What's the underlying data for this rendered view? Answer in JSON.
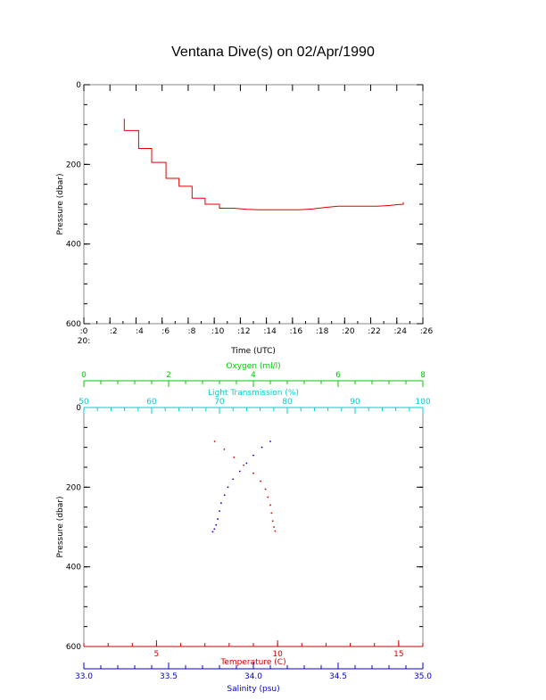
{
  "title": "Ventana Dive(s) on 02/Apr/1990",
  "colors": {
    "axis": "#000000",
    "trace": "#dd0000",
    "temperature": "#cc0000",
    "salinity": "#0000cc",
    "oxygen": "#00cc00",
    "transmission": "#00cccc"
  },
  "chart_data": [
    {
      "type": "line",
      "xlabel": "Time (UTC)",
      "ylabel": "Pressure (dbar)",
      "x_tick_labels": [
        ":0",
        ":2",
        ":4",
        ":6",
        ":8",
        ":10",
        ":12",
        ":14",
        ":16",
        ":18",
        ":20",
        ":22",
        ":24",
        ":26"
      ],
      "x_hour_label": "20:",
      "xlim": [
        0,
        26
      ],
      "y_ticks": [
        0,
        200,
        400,
        600
      ],
      "ylim": [
        0,
        600
      ],
      "y_inverted": true,
      "series": [
        {
          "x": [
            3.1,
            3.1,
            4.2,
            4.2,
            5.2,
            5.2,
            6.3,
            6.3,
            7.3,
            7.3,
            8.3,
            8.3,
            9.3,
            9.3,
            10.4,
            10.4,
            11.5,
            12.5,
            13.5,
            14.5,
            15.5,
            16.5,
            17.5,
            18.5,
            19.5,
            20.5,
            21.5,
            22.5,
            23.5,
            24.0,
            24.5,
            24.5
          ],
          "y": [
            85,
            115,
            115,
            160,
            160,
            195,
            195,
            235,
            235,
            255,
            255,
            285,
            285,
            300,
            300,
            310,
            310,
            313,
            314,
            314,
            314,
            314,
            312,
            308,
            305,
            305,
            305,
            305,
            303,
            301,
            300,
            295
          ]
        }
      ]
    },
    {
      "type": "scatter",
      "ylabel": "Pressure (dbar)",
      "y_ticks": [
        0,
        200,
        400,
        600
      ],
      "ylim": [
        0,
        600
      ],
      "y_inverted": true,
      "axes": [
        {
          "label": "Temperature (C)",
          "position": "bottom",
          "range": [
            2,
            16
          ],
          "tick_labels": [
            "5",
            "10",
            "15"
          ],
          "tick_values": [
            5,
            10,
            15
          ]
        },
        {
          "label": "Salinity (psu)",
          "position": "bottom",
          "range": [
            33.0,
            35.0
          ],
          "tick_labels": [
            "33.0",
            "33.5",
            "34.0",
            "34.5",
            "35.0"
          ],
          "tick_values": [
            33.0,
            33.5,
            34.0,
            34.5,
            35.0
          ]
        },
        {
          "label": "Oxygen (ml/l)",
          "position": "top",
          "range": [
            0,
            8
          ],
          "tick_labels": [
            "0",
            "2",
            "4",
            "6",
            "8"
          ],
          "tick_values": [
            0,
            2,
            4,
            6,
            8
          ]
        },
        {
          "label": "Light Transmission (%)",
          "position": "top",
          "range": [
            50,
            100
          ],
          "tick_labels": [
            "50",
            "60",
            "70",
            "80",
            "90",
            "100"
          ],
          "tick_values": [
            50,
            60,
            70,
            80,
            90,
            100
          ]
        }
      ],
      "series": [
        {
          "axis": "Temperature (C)",
          "x": [
            7.4,
            7.8,
            8.2,
            8.6,
            9.0,
            9.3,
            9.5,
            9.6,
            9.7,
            9.75,
            9.8,
            9.85,
            9.9
          ],
          "y": [
            85,
            105,
            125,
            145,
            165,
            185,
            205,
            225,
            245,
            265,
            285,
            300,
            310
          ]
        },
        {
          "axis": "Salinity (psu)",
          "x": [
            34.1,
            34.05,
            34.0,
            33.96,
            33.92,
            33.88,
            33.85,
            33.83,
            33.81,
            33.8,
            33.79,
            33.78,
            33.77,
            33.76
          ],
          "y": [
            85,
            100,
            120,
            140,
            160,
            180,
            200,
            220,
            240,
            260,
            280,
            295,
            305,
            312
          ]
        }
      ]
    }
  ]
}
